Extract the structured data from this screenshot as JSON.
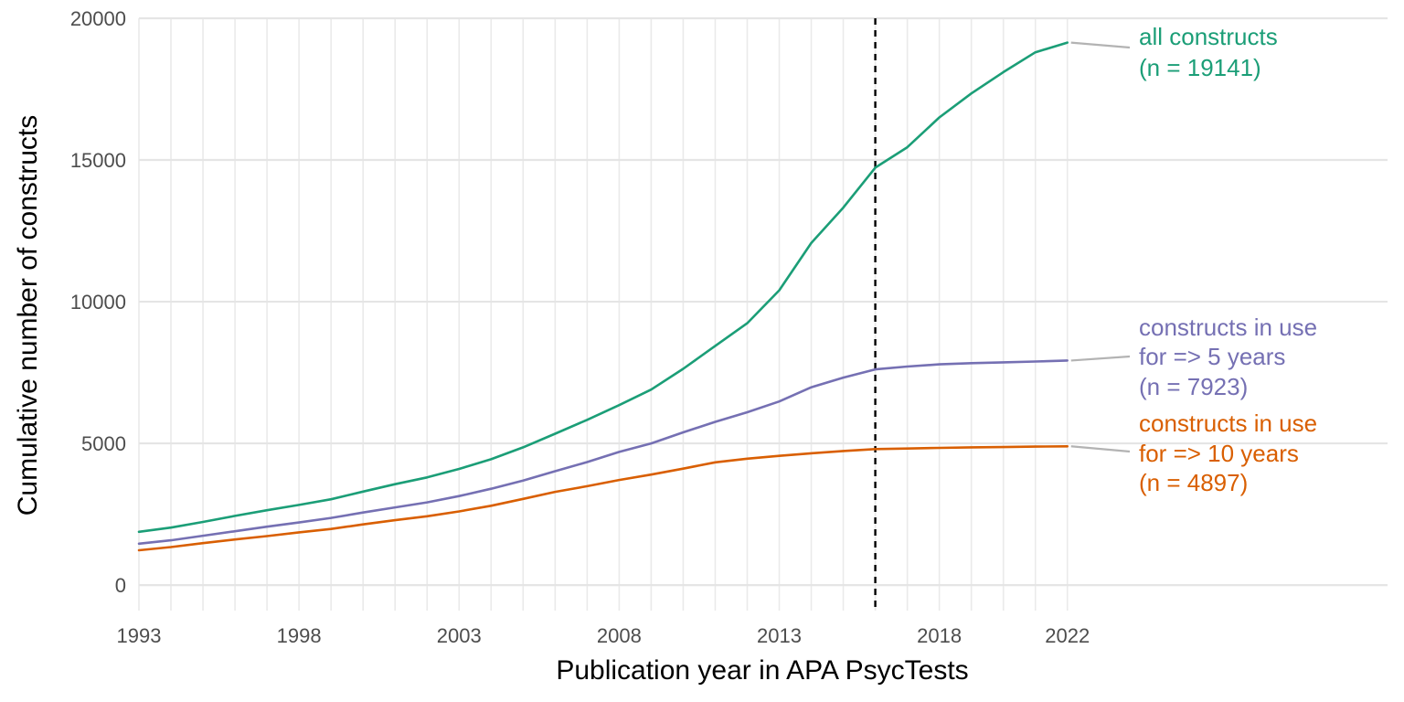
{
  "chart_data": {
    "type": "line",
    "title": "",
    "xlabel": "Publication year in APA PsycTests",
    "ylabel": "Cumulative number of constructs",
    "x_ticks": [
      "1993",
      "1998",
      "2003",
      "2008",
      "2013",
      "2018",
      "2022"
    ],
    "y_ticks": [
      "0",
      "5000",
      "10000",
      "15000",
      "20000"
    ],
    "xlim": [
      1993,
      2032
    ],
    "ylim": [
      -900,
      20000
    ],
    "grid": true,
    "vline_x": 2016,
    "x": [
      1993,
      1994,
      1995,
      1996,
      1997,
      1998,
      1999,
      2000,
      2001,
      2002,
      2003,
      2004,
      2005,
      2006,
      2007,
      2008,
      2009,
      2010,
      2011,
      2012,
      2013,
      2014,
      2015,
      2016,
      2017,
      2018,
      2019,
      2020,
      2021,
      2022
    ],
    "series": [
      {
        "label_lines": [
          "all constructs",
          "(n = 19141)"
        ],
        "color": "#1b9e77",
        "values": [
          1880,
          2030,
          2230,
          2440,
          2640,
          2830,
          3030,
          3300,
          3560,
          3800,
          4100,
          4440,
          4860,
          5340,
          5830,
          6350,
          6900,
          7630,
          8440,
          9240,
          10400,
          12070,
          13320,
          14730,
          15450,
          16500,
          17350,
          18100,
          18800,
          19141
        ]
      },
      {
        "label_lines": [
          "constructs in use",
          "for => 5 years",
          "(n = 7923)"
        ],
        "color": "#7570b3",
        "values": [
          1460,
          1580,
          1740,
          1900,
          2060,
          2210,
          2370,
          2560,
          2740,
          2920,
          3140,
          3400,
          3690,
          4020,
          4340,
          4700,
          5000,
          5390,
          5760,
          6100,
          6480,
          6980,
          7320,
          7610,
          7710,
          7790,
          7830,
          7860,
          7890,
          7923
        ]
      },
      {
        "label_lines": [
          "constructs in use",
          "for => 10 years",
          "(n = 4897)"
        ],
        "color": "#d95f02",
        "values": [
          1230,
          1340,
          1480,
          1610,
          1730,
          1860,
          1980,
          2140,
          2290,
          2430,
          2600,
          2800,
          3040,
          3290,
          3490,
          3710,
          3900,
          4110,
          4330,
          4460,
          4560,
          4650,
          4730,
          4800,
          4820,
          4840,
          4860,
          4870,
          4885,
          4897
        ]
      }
    ]
  }
}
